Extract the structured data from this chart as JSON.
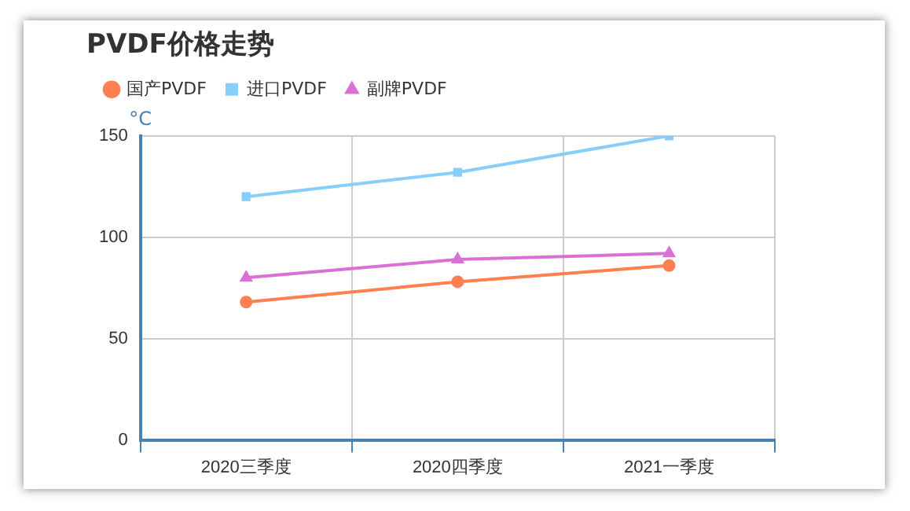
{
  "chart_data": {
    "type": "line",
    "title": "PVDF价格走势",
    "ylabel": "°C",
    "categories": [
      "2020三季度",
      "2020四季度",
      "2021一季度"
    ],
    "series": [
      {
        "name": "国产PVDF",
        "color": "#ff7f50",
        "values": [
          68,
          78,
          86
        ],
        "marker": "circle"
      },
      {
        "name": "进口PVDF",
        "color": "#87cefa",
        "values": [
          120,
          132,
          150
        ],
        "marker": "square"
      },
      {
        "name": "副牌PVDF",
        "color": "#da70d6",
        "values": [
          80,
          89,
          92
        ],
        "marker": "triangle"
      }
    ],
    "ylim": [
      0,
      150
    ],
    "yticks": [
      0,
      50,
      100,
      150
    ],
    "grid": true,
    "legend": "top",
    "line_style": "solid"
  }
}
